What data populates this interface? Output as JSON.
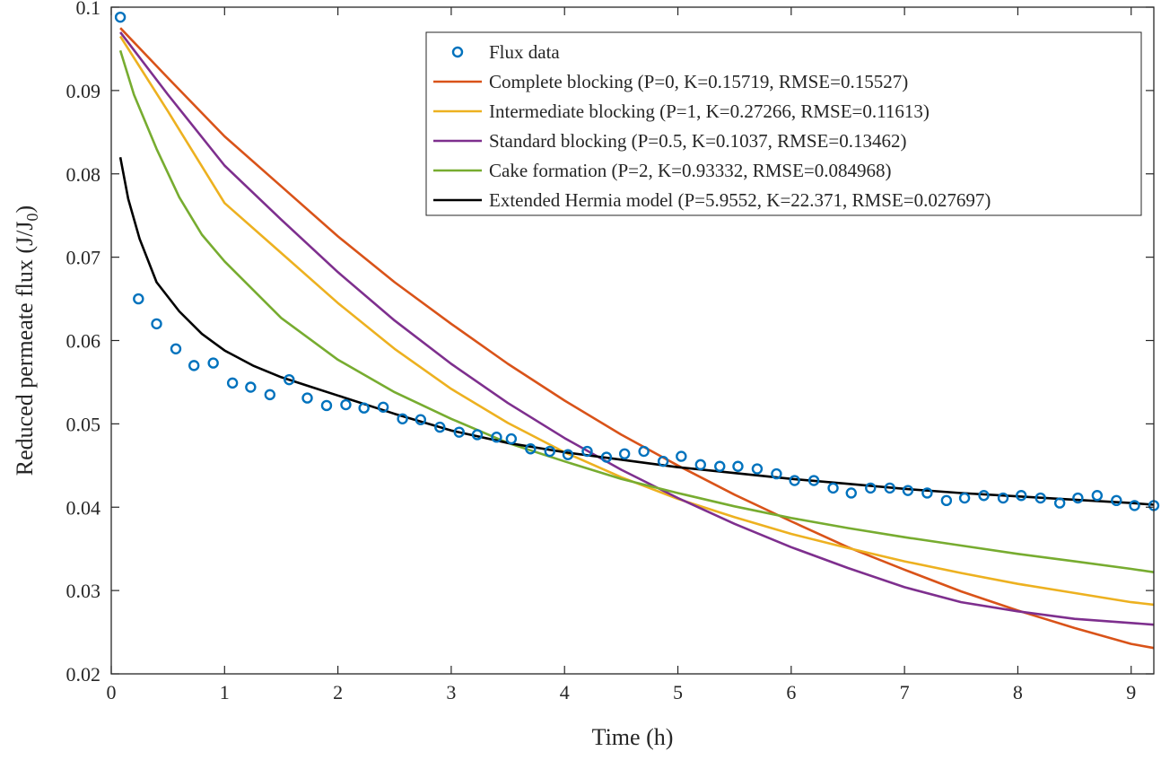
{
  "chart_data": {
    "type": "line",
    "title": "",
    "xlabel": "Time (h)",
    "ylabel": "Reduced permeate flux (J/J",
    "ylabel_subscript": "0",
    "ylabel_suffix": ")",
    "xlim": [
      0,
      9.2
    ],
    "ylim": [
      0.02,
      0.1
    ],
    "x_ticks": [
      0,
      1,
      2,
      3,
      4,
      5,
      6,
      7,
      8,
      9
    ],
    "x_tick_labels": [
      "0",
      "1",
      "2",
      "3",
      "4",
      "5",
      "6",
      "7",
      "8",
      "9"
    ],
    "y_ticks": [
      0.02,
      0.03,
      0.04,
      0.05,
      0.06,
      0.07,
      0.08,
      0.09,
      0.1
    ],
    "y_tick_labels": [
      "0.02",
      "0.03",
      "0.04",
      "0.05",
      "0.06",
      "0.07",
      "0.08",
      "0.09",
      "0.1"
    ],
    "grid": false,
    "legend_position": "top-right",
    "scatter_series": {
      "name": "Flux data",
      "color": "#0072BD",
      "x": [
        0.08,
        0.24,
        0.4,
        0.57,
        0.73,
        0.9,
        1.07,
        1.23,
        1.4,
        1.57,
        1.73,
        1.9,
        2.07,
        2.23,
        2.4,
        2.57,
        2.73,
        2.9,
        3.07,
        3.23,
        3.4,
        3.53,
        3.7,
        3.87,
        4.03,
        4.2,
        4.37,
        4.53,
        4.7,
        4.87,
        5.03,
        5.2,
        5.37,
        5.53,
        5.7,
        5.87,
        6.03,
        6.2,
        6.37,
        6.53,
        6.7,
        6.87,
        7.03,
        7.2,
        7.37,
        7.53,
        7.7,
        7.87,
        8.03,
        8.2,
        8.37,
        8.53,
        8.7,
        8.87,
        9.03,
        9.2
      ],
      "y": [
        0.0988,
        0.065,
        0.062,
        0.059,
        0.057,
        0.0573,
        0.0549,
        0.0544,
        0.0535,
        0.0553,
        0.0531,
        0.0522,
        0.0523,
        0.0519,
        0.052,
        0.0506,
        0.0505,
        0.0496,
        0.049,
        0.0487,
        0.0484,
        0.0482,
        0.047,
        0.0467,
        0.0463,
        0.0467,
        0.046,
        0.0464,
        0.0467,
        0.0455,
        0.0461,
        0.0451,
        0.0449,
        0.0449,
        0.0446,
        0.044,
        0.0432,
        0.0432,
        0.0423,
        0.0417,
        0.0423,
        0.0423,
        0.042,
        0.0417,
        0.0408,
        0.0411,
        0.0414,
        0.0411,
        0.0414,
        0.0411,
        0.0405,
        0.0411,
        0.0414,
        0.0408,
        0.0402,
        0.0402
      ]
    },
    "series": [
      {
        "name": "Complete blocking (P=0, K=0.15719, RMSE=0.15527)",
        "color": "#D95319",
        "x": [
          0.08,
          0.5,
          1,
          1.5,
          2,
          2.5,
          3,
          3.5,
          4,
          4.5,
          5,
          5.5,
          6,
          6.5,
          7,
          7.5,
          8,
          8.5,
          9,
          9.2
        ],
        "y": [
          0.0975,
          0.0915,
          0.0845,
          0.0785,
          0.0725,
          0.067,
          0.062,
          0.0572,
          0.0528,
          0.0487,
          0.045,
          0.0415,
          0.0383,
          0.0352,
          0.0325,
          0.0299,
          0.0276,
          0.0255,
          0.0236,
          0.0231
        ]
      },
      {
        "name": "Intermediate blocking (P=1, K=0.27266, RMSE=0.11613)",
        "color": "#EDB120",
        "x": [
          0.08,
          0.5,
          1,
          1.5,
          2,
          2.5,
          3,
          3.5,
          4,
          4.5,
          5,
          5.5,
          6,
          6.5,
          7,
          7.5,
          8,
          8.5,
          9,
          9.2
        ],
        "y": [
          0.0965,
          0.0875,
          0.0765,
          0.0705,
          0.0645,
          0.059,
          0.0542,
          0.0501,
          0.0466,
          0.0436,
          0.041,
          0.0388,
          0.0368,
          0.0351,
          0.0335,
          0.0321,
          0.0308,
          0.0297,
          0.0286,
          0.0283
        ]
      },
      {
        "name": "Standard blocking (P=0.5, K=0.1037, RMSE=0.13462)",
        "color": "#7E2F8E",
        "x": [
          0.08,
          0.5,
          1,
          1.5,
          2,
          2.5,
          3,
          3.5,
          4,
          4.5,
          5,
          5.5,
          6,
          6.5,
          7,
          7.5,
          8,
          8.5,
          9,
          9.2
        ],
        "y": [
          0.097,
          0.0895,
          0.081,
          0.0745,
          0.0682,
          0.0624,
          0.0572,
          0.0525,
          0.0483,
          0.0445,
          0.0411,
          0.038,
          0.0352,
          0.0327,
          0.0304,
          0.0286,
          0.0275,
          0.0266,
          0.0261,
          0.0259
        ]
      },
      {
        "name": "Cake formation (P=2, K=0.93332, RMSE=0.084968)",
        "color": "#77AC30",
        "x": [
          0.08,
          0.2,
          0.4,
          0.6,
          0.8,
          1,
          1.5,
          2,
          2.5,
          3,
          3.5,
          4,
          4.5,
          5,
          5.5,
          6,
          6.5,
          7,
          7.5,
          8,
          8.5,
          9,
          9.2
        ],
        "y": [
          0.0948,
          0.0895,
          0.083,
          0.0772,
          0.0727,
          0.0695,
          0.0627,
          0.0577,
          0.0538,
          0.0506,
          0.0477,
          0.0455,
          0.0434,
          0.0417,
          0.0401,
          0.0387,
          0.0375,
          0.0364,
          0.0354,
          0.0344,
          0.0335,
          0.0326,
          0.0322
        ]
      },
      {
        "name": "Extended Hermia model (P=5.9552, K=22.371, RMSE=0.027697)",
        "color": "#000000",
        "x": [
          0.08,
          0.15,
          0.25,
          0.4,
          0.6,
          0.8,
          1,
          1.25,
          1.5,
          1.75,
          2,
          2.5,
          3,
          3.5,
          4,
          4.5,
          5,
          5.5,
          6,
          6.5,
          7,
          7.5,
          8,
          8.5,
          9,
          9.2
        ],
        "y": [
          0.082,
          0.077,
          0.0722,
          0.067,
          0.0635,
          0.0608,
          0.0588,
          0.057,
          0.0556,
          0.0545,
          0.0534,
          0.0512,
          0.0492,
          0.0477,
          0.0466,
          0.0457,
          0.0448,
          0.0441,
          0.0434,
          0.0428,
          0.0422,
          0.0417,
          0.0413,
          0.0409,
          0.0405,
          0.0403
        ]
      }
    ]
  }
}
